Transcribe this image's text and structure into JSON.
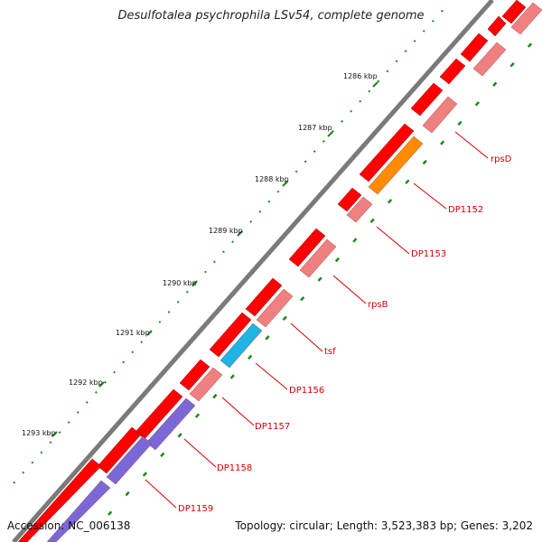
{
  "title": "Desulfotalea psychrophila LSv54, complete genome",
  "footer": {
    "accession": "Accession: NC_006138",
    "summary": "Topology: circular; Length: 3,523,383 bp; Genes: 3,202"
  },
  "scale_labels": [
    "1286 kbp",
    "1287 kbp",
    "1288 kbp",
    "1289 kbp",
    "1290 kbp",
    "1291 kbp",
    "1292 kbp",
    "1293 kbp"
  ],
  "gene_labels": [
    "rpsD",
    "DP1152",
    "DP1153",
    "rpsB",
    "tsf",
    "DP1156",
    "DP1157",
    "DP1158",
    "DP1159"
  ],
  "colors": {
    "backbone": "#7a7a7a",
    "forward_gene": "#ff0000",
    "reverse_gene": "#f08080",
    "cog_orange": "#ff8c00",
    "cog_cyan": "#1eb4e6",
    "cog_purple": "#7b68d8",
    "tick_green": "#1a8a1a",
    "label_red": "#d40000"
  }
}
